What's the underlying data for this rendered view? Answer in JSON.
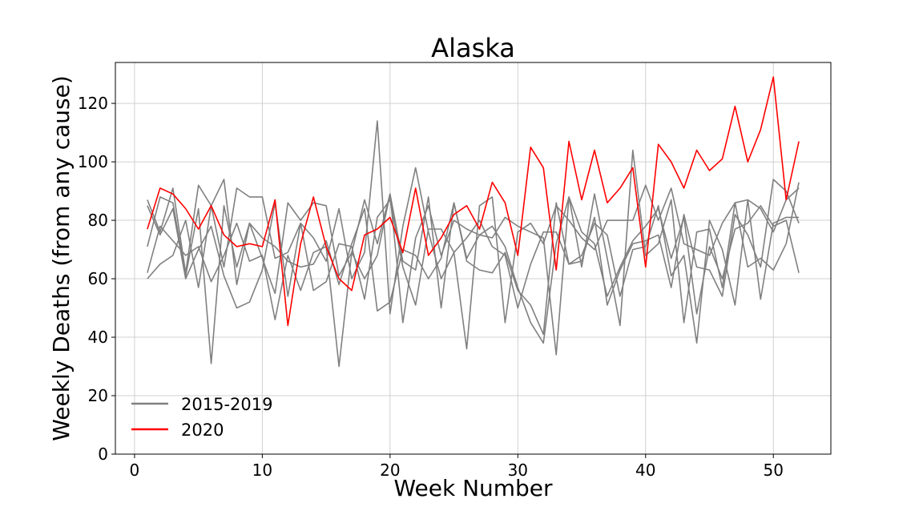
{
  "chart_data": {
    "type": "line",
    "title": "Alaska",
    "xlabel": "Week Number",
    "ylabel": "Weekly Deaths (from any cause)",
    "xlim": [
      -1.5,
      54.5
    ],
    "ylim": [
      0,
      134
    ],
    "xticks": [
      0,
      10,
      20,
      30,
      40,
      50
    ],
    "yticks": [
      0,
      20,
      40,
      60,
      80,
      100,
      120
    ],
    "grid": true,
    "legend_position": "lower-left",
    "legend": [
      {
        "label": "2015-2019",
        "color": "#808080"
      },
      {
        "label": "2020",
        "color": "#ff0000"
      }
    ],
    "x": [
      1,
      2,
      3,
      4,
      5,
      6,
      7,
      8,
      9,
      10,
      11,
      12,
      13,
      14,
      15,
      16,
      17,
      18,
      19,
      20,
      21,
      22,
      23,
      24,
      25,
      26,
      27,
      28,
      29,
      30,
      31,
      32,
      33,
      34,
      35,
      36,
      37,
      38,
      39,
      40,
      41,
      42,
      43,
      44,
      45,
      46,
      47,
      48,
      49,
      50,
      51,
      52
    ],
    "series": [
      {
        "group": "2015-2019",
        "color": "#808080",
        "values": [
          87,
          76,
          91,
          62,
          92,
          85,
          94,
          58,
          79,
          67,
          55,
          86,
          80,
          86,
          85,
          61,
          69,
          87,
          72,
          89,
          66,
          63,
          88,
          50,
          86,
          67,
          75,
          74,
          81,
          78,
          76,
          74,
          34,
          88,
          64,
          89,
          67,
          44,
          104,
          68,
          72,
          87,
          45,
          76,
          77,
          57,
          86,
          64,
          67,
          63,
          72,
          93
        ]
      },
      {
        "group": "2015-2019",
        "color": "#808080",
        "values": [
          71,
          88,
          86,
          61,
          84,
          31,
          85,
          64,
          79,
          74,
          71,
          66,
          64,
          65,
          73,
          58,
          72,
          84,
          49,
          52,
          70,
          68,
          60,
          67,
          86,
          66,
          63,
          62,
          69,
          56,
          51,
          41,
          86,
          65,
          68,
          79,
          75,
          54,
          70,
          71,
          85,
          61,
          68,
          38,
          80,
          70,
          51,
          87,
          53,
          79,
          81,
          81
        ]
      },
      {
        "group": "2015-2019",
        "color": "#808080",
        "values": [
          85,
          75,
          84,
          60,
          70,
          78,
          61,
          50,
          52,
          63,
          86,
          54,
          79,
          74,
          66,
          84,
          60,
          69,
          114,
          48,
          78,
          98,
          76,
          60,
          69,
          36,
          85,
          88,
          45,
          76,
          79,
          72,
          85,
          80,
          74,
          70,
          80,
          80,
          80,
          92,
          80,
          91,
          72,
          70,
          68,
          79,
          86,
          87,
          84,
          76,
          87,
          91
        ]
      },
      {
        "group": "2015-2019",
        "color": "#808080",
        "values": [
          62,
          78,
          73,
          68,
          71,
          59,
          68,
          79,
          66,
          68,
          46,
          68,
          56,
          69,
          71,
          30,
          69,
          60,
          68,
          89,
          45,
          74,
          85,
          68,
          80,
          77,
          75,
          78,
          71,
          57,
          45,
          38,
          72,
          88,
          76,
          72,
          54,
          64,
          73,
          78,
          84,
          67,
          81,
          48,
          71,
          60,
          77,
          79,
          85,
          78,
          80,
          62
        ]
      },
      {
        "group": "2015-2019",
        "color": "#808080",
        "values": [
          60,
          65,
          68,
          80,
          57,
          85,
          64,
          91,
          88,
          88,
          67,
          69,
          79,
          56,
          59,
          72,
          71,
          53,
          81,
          87,
          64,
          51,
          77,
          77,
          69,
          74,
          80,
          71,
          68,
          50,
          65,
          76,
          76,
          65,
          66,
          81,
          51,
          63,
          72,
          73,
          75,
          57,
          82,
          64,
          63,
          54,
          82,
          75,
          64,
          94,
          90,
          79
        ]
      },
      {
        "group": "2020",
        "color": "#ff0000",
        "values": [
          77,
          91,
          89,
          84,
          77,
          85,
          75,
          71,
          72,
          71,
          87,
          44,
          72,
          88,
          71,
          60,
          56,
          75,
          77,
          81,
          69,
          91,
          68,
          74,
          82,
          85,
          77,
          93,
          86,
          68,
          105,
          98,
          63,
          107,
          87,
          104,
          86,
          91,
          98,
          64,
          106,
          100,
          91,
          104,
          97,
          101,
          119,
          100,
          111,
          129,
          87,
          107
        ]
      }
    ]
  }
}
